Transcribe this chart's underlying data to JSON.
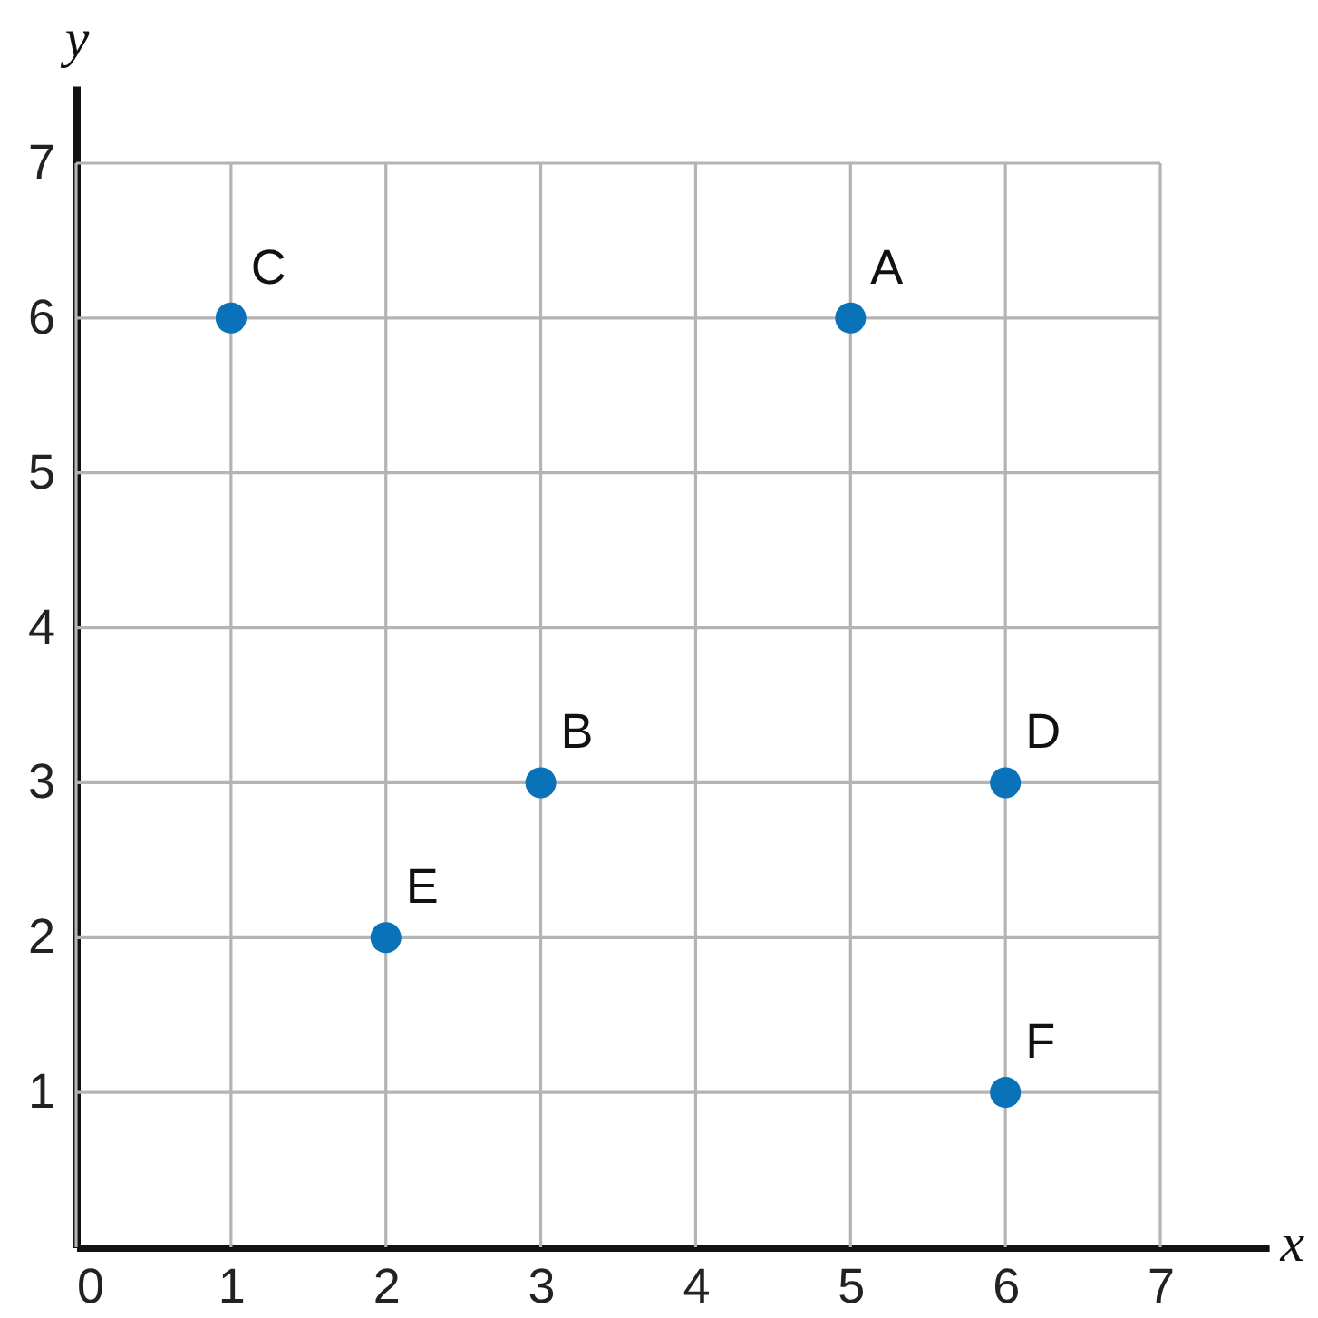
{
  "chart_data": {
    "type": "scatter",
    "xlabel": "x",
    "ylabel": "y",
    "series": [
      {
        "color": "#0a72b8",
        "x": [
          5,
          3,
          1,
          6,
          2,
          6
        ],
        "values": [
          6,
          3,
          6,
          3,
          2,
          1
        ]
      }
    ],
    "annotations": [
      {
        "text": "A",
        "x": 5,
        "y": 6
      },
      {
        "text": "B",
        "x": 3,
        "y": 3
      },
      {
        "text": "C",
        "x": 1,
        "y": 6
      },
      {
        "text": "D",
        "x": 6,
        "y": 3
      },
      {
        "text": "E",
        "x": 2,
        "y": 2
      },
      {
        "text": "F",
        "x": 6,
        "y": 1
      }
    ],
    "xlim": [
      0,
      7.7
    ],
    "ylim": [
      0,
      7.5
    ],
    "xticks": [
      0,
      1,
      2,
      3,
      4,
      5,
      6,
      7
    ],
    "yticks": [
      1,
      2,
      3,
      4,
      5,
      6,
      7
    ],
    "grid": true,
    "marker": "circle"
  }
}
